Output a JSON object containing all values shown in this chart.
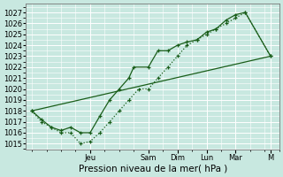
{
  "xlabel": "Pression niveau de la mer( hPa )",
  "bg_color": "#c8e8e0",
  "grid_major_color": "#ffffff",
  "grid_minor_color": "#ddf0ec",
  "line_color": "#1a5e1a",
  "ylim": [
    1014.5,
    1027.8
  ],
  "yticks": [
    1015,
    1016,
    1017,
    1018,
    1019,
    1020,
    1021,
    1022,
    1023,
    1024,
    1025,
    1026,
    1027
  ],
  "xlim": [
    -0.2,
    8.5
  ],
  "x_day_labels": [
    "Jeu",
    "Sam",
    "Dim",
    "Lun",
    "Mar",
    "M"
  ],
  "x_day_positions": [
    2.0,
    4.0,
    5.0,
    6.0,
    7.0,
    8.2
  ],
  "line1_x": [
    0,
    0.33,
    0.67,
    1.0,
    1.33,
    1.67,
    2.0,
    2.33,
    2.67,
    3.0,
    3.33,
    3.67,
    4.0,
    4.33,
    4.67,
    5.0,
    5.33,
    5.67,
    6.0,
    6.33,
    6.67,
    7.0,
    7.33,
    8.2
  ],
  "line1_y": [
    1018,
    1017,
    1016.5,
    1016,
    1016,
    1015,
    1015.2,
    1016,
    1017,
    1018,
    1019,
    1020,
    1020,
    1021,
    1022,
    1023,
    1024,
    1024.5,
    1025,
    1025.5,
    1026,
    1026.5,
    1027,
    1023
  ],
  "line2_x": [
    0,
    0.33,
    0.67,
    1.0,
    1.33,
    1.67,
    2.0,
    2.33,
    2.67,
    3.0,
    3.33,
    3.5,
    4.0,
    4.33,
    4.67,
    5.0,
    5.33,
    5.67,
    6.0,
    6.33,
    6.67,
    7.0,
    7.33,
    8.2
  ],
  "line2_y": [
    1018,
    1017.2,
    1016.5,
    1016.2,
    1016.5,
    1016,
    1016,
    1017.5,
    1019,
    1020,
    1021,
    1022,
    1022,
    1023.5,
    1023.5,
    1024,
    1024.3,
    1024.5,
    1025.2,
    1025.5,
    1026.3,
    1026.8,
    1027,
    1023
  ],
  "line3_x": [
    0,
    8.2
  ],
  "line3_y": [
    1018,
    1023
  ],
  "xlabel_fontsize": 7.5,
  "tick_fontsize": 6.0,
  "linewidth": 0.9
}
